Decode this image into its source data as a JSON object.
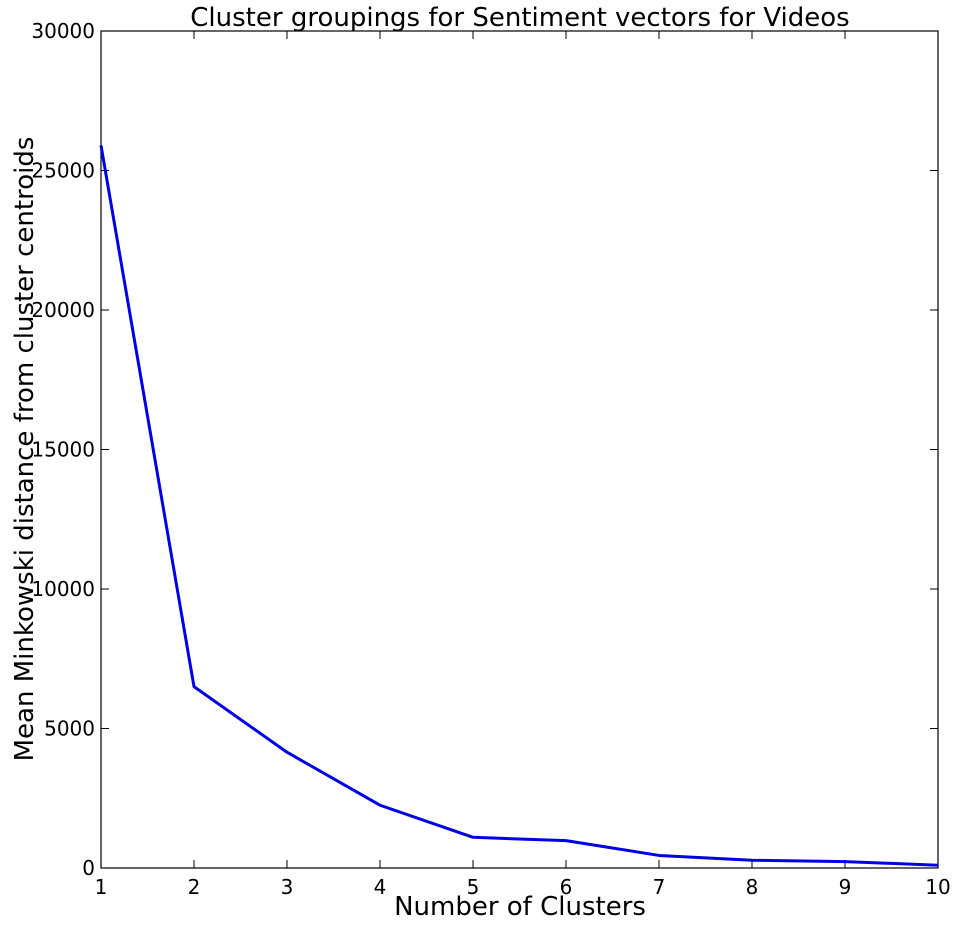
{
  "chart_data": {
    "type": "line",
    "title": "Cluster groupings for Sentiment vectors for Videos",
    "xlabel": "Number of Clusters",
    "ylabel": "Mean Minkowski distance from cluster centroids",
    "xlim": [
      1,
      10
    ],
    "ylim": [
      0,
      30000
    ],
    "xticks": [
      1,
      2,
      3,
      4,
      5,
      6,
      7,
      8,
      9,
      10
    ],
    "yticks": [
      0,
      5000,
      10000,
      15000,
      20000,
      25000,
      30000
    ],
    "grid": false,
    "series": [
      {
        "x": [
          1,
          2,
          3,
          4,
          5,
          6,
          7,
          8,
          9,
          10
        ],
        "values": [
          25900,
          6500,
          4150,
          2250,
          1100,
          980,
          450,
          280,
          230,
          100
        ],
        "color": "#0000e6"
      }
    ]
  }
}
